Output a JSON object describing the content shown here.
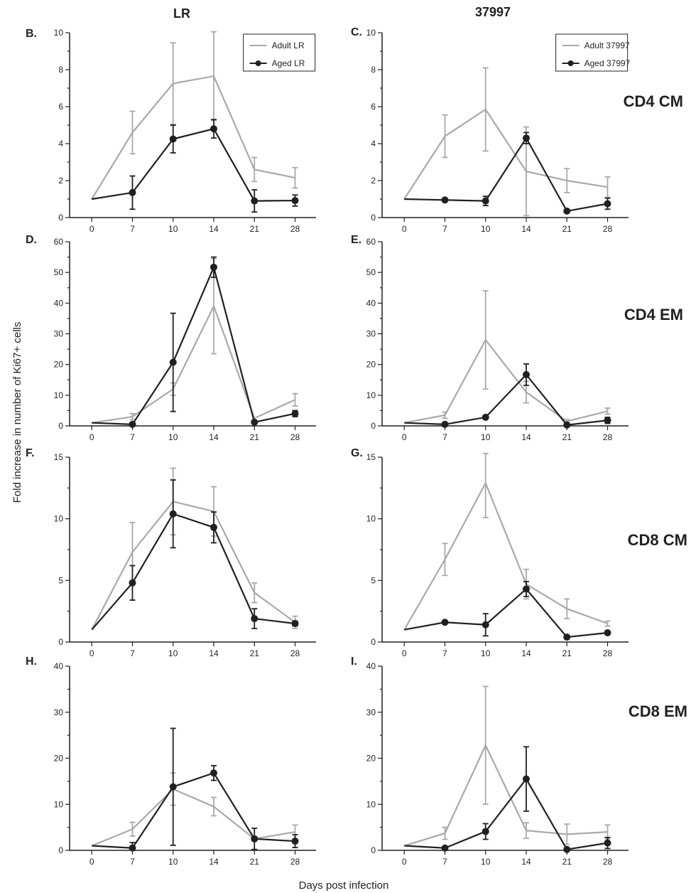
{
  "figure": {
    "col_titles": [
      "LR",
      "37997"
    ],
    "row_titles": [
      "CD4 CM",
      "CD4 EM",
      "CD8 CM",
      "CD8 EM"
    ],
    "ylabel": "Fold increase in number of Ki67+ cells",
    "xlabel": "Days post infection"
  },
  "colors": {
    "adult": "#a7a9ac",
    "aged": "#231f20"
  },
  "chart_data": [
    {
      "panel": "B.",
      "type": "line",
      "column": "LR",
      "row": "CD4 CM",
      "x": [
        0,
        7,
        10,
        14,
        21,
        28
      ],
      "ylim": [
        0,
        10
      ],
      "yticks": [
        0,
        2,
        4,
        6,
        8,
        10
      ],
      "legend": {
        "show": true,
        "placement": "top-right"
      },
      "series": [
        {
          "name": "Adult LR",
          "role": "adult",
          "values": [
            1.0,
            4.6,
            7.25,
            7.65,
            2.6,
            2.15
          ],
          "err": [
            0,
            1.15,
            2.2,
            2.4,
            0.65,
            0.55
          ]
        },
        {
          "name": "Aged LR",
          "role": "aged",
          "values": [
            1.0,
            1.35,
            4.25,
            4.8,
            0.9,
            0.92
          ],
          "err": [
            0,
            0.9,
            0.75,
            0.5,
            0.6,
            0.3
          ]
        }
      ]
    },
    {
      "panel": "C.",
      "type": "line",
      "column": "37997",
      "row": "CD4 CM",
      "x": [
        0,
        7,
        10,
        14,
        21,
        28
      ],
      "ylim": [
        0,
        10
      ],
      "yticks": [
        0,
        2,
        4,
        6,
        8,
        10
      ],
      "legend": {
        "show": true,
        "placement": "top-right"
      },
      "series": [
        {
          "name": "Adult 37997",
          "role": "adult",
          "values": [
            1.0,
            4.4,
            5.85,
            2.5,
            2.0,
            1.65
          ],
          "err": [
            0,
            1.15,
            2.25,
            2.4,
            0.65,
            0.55
          ]
        },
        {
          "name": "Aged 37997",
          "role": "aged",
          "values": [
            1.0,
            0.95,
            0.9,
            4.3,
            0.35,
            0.75
          ],
          "err": [
            0,
            0,
            0.25,
            0.3,
            0,
            0.3
          ]
        }
      ]
    },
    {
      "panel": "D.",
      "type": "line",
      "column": "LR",
      "row": "CD4 EM",
      "x": [
        0,
        7,
        10,
        14,
        21,
        28
      ],
      "ylim": [
        0,
        60
      ],
      "yticks": [
        0,
        10,
        20,
        30,
        40,
        50,
        60
      ],
      "series": [
        {
          "role": "adult",
          "values": [
            1.0,
            3.0,
            12.0,
            39.0,
            2.5,
            8.5
          ],
          "err": [
            0,
            1.0,
            2.0,
            15.5,
            0,
            2.0
          ]
        },
        {
          "role": "aged",
          "values": [
            1.0,
            0.5,
            20.7,
            51.7,
            1.2,
            4.0
          ],
          "err": [
            0,
            0.5,
            16.0,
            3.3,
            0,
            1.0
          ]
        }
      ]
    },
    {
      "panel": "E.",
      "type": "line",
      "column": "37997",
      "row": "CD4 EM",
      "x": [
        0,
        7,
        10,
        14,
        21,
        28
      ],
      "ylim": [
        0,
        60
      ],
      "yticks": [
        0,
        10,
        20,
        30,
        40,
        50,
        60
      ],
      "series": [
        {
          "role": "adult",
          "values": [
            1.0,
            3.5,
            28.0,
            11.0,
            1.5,
            4.8
          ],
          "err": [
            0,
            1.0,
            16.0,
            3.5,
            0.5,
            1.0
          ]
        },
        {
          "role": "aged",
          "values": [
            1.0,
            0.5,
            2.8,
            16.7,
            0.3,
            1.8
          ],
          "err": [
            0,
            0,
            0,
            3.5,
            0,
            1.0
          ]
        }
      ]
    },
    {
      "panel": "F.",
      "type": "line",
      "column": "LR",
      "row": "CD8 CM",
      "x": [
        0,
        7,
        10,
        14,
        21,
        28
      ],
      "ylim": [
        0,
        15
      ],
      "yticks": [
        0,
        5,
        10,
        15
      ],
      "series": [
        {
          "role": "adult",
          "values": [
            1.0,
            7.3,
            11.4,
            10.6,
            4.0,
            1.6
          ],
          "err": [
            0,
            2.4,
            2.7,
            2.0,
            0.8,
            0.5
          ]
        },
        {
          "role": "aged",
          "values": [
            1.0,
            4.8,
            10.4,
            9.3,
            1.9,
            1.5
          ],
          "err": [
            0,
            1.4,
            2.75,
            1.25,
            0.8,
            0.2
          ]
        }
      ]
    },
    {
      "panel": "G.",
      "type": "line",
      "column": "37997",
      "row": "CD8 CM",
      "x": [
        0,
        7,
        10,
        14,
        21,
        28
      ],
      "ylim": [
        0,
        15
      ],
      "yticks": [
        0,
        5,
        10,
        15
      ],
      "series": [
        {
          "role": "adult",
          "values": [
            1.0,
            6.7,
            12.9,
            4.7,
            2.7,
            1.5
          ],
          "err": [
            0,
            1.3,
            2.8,
            1.2,
            0.8,
            0.2
          ]
        },
        {
          "role": "aged",
          "values": [
            1.0,
            1.6,
            1.4,
            4.3,
            0.4,
            0.75
          ],
          "err": [
            0,
            0,
            0.9,
            0.6,
            0,
            0
          ]
        }
      ]
    },
    {
      "panel": "H.",
      "type": "line",
      "column": "LR",
      "row": "CD8 EM",
      "x": [
        0,
        7,
        10,
        14,
        21,
        28
      ],
      "ylim": [
        0,
        40
      ],
      "yticks": [
        0,
        10,
        20,
        30,
        40
      ],
      "series": [
        {
          "role": "adult",
          "values": [
            1.0,
            4.6,
            13.3,
            9.5,
            2.5,
            4.0
          ],
          "err": [
            0,
            1.5,
            3.5,
            2.0,
            0.5,
            1.5
          ]
        },
        {
          "role": "aged",
          "values": [
            1.0,
            0.5,
            13.8,
            16.8,
            2.5,
            2.0
          ],
          "err": [
            0,
            1.2,
            12.7,
            1.6,
            2.3,
            1.4
          ]
        }
      ]
    },
    {
      "panel": "I.",
      "type": "line",
      "column": "37997",
      "row": "CD8 EM",
      "x": [
        0,
        7,
        10,
        14,
        21,
        28
      ],
      "ylim": [
        0,
        40
      ],
      "yticks": [
        0,
        10,
        20,
        30,
        40
      ],
      "series": [
        {
          "role": "adult",
          "values": [
            1.0,
            3.7,
            22.8,
            4.3,
            3.5,
            4.0
          ],
          "err": [
            0,
            1.3,
            12.8,
            1.7,
            2.2,
            1.5
          ]
        },
        {
          "role": "aged",
          "values": [
            1.0,
            0.5,
            4.1,
            15.5,
            0.2,
            1.6
          ],
          "err": [
            0,
            0,
            1.7,
            7.0,
            0,
            1.2
          ]
        }
      ]
    }
  ]
}
